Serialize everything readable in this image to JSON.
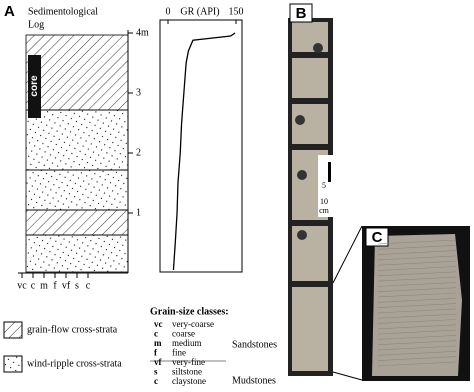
{
  "panels": {
    "a": {
      "label": "A",
      "log_title": [
        "Sedimentological",
        "Log"
      ],
      "core_label": "core",
      "depth_ticks": [
        {
          "value": 1,
          "label": "1"
        },
        {
          "value": 2,
          "label": "2"
        },
        {
          "value": 3,
          "label": "3"
        },
        {
          "value": 4,
          "label": "4m"
        }
      ],
      "grain_size_ticks": [
        "vc",
        "c",
        "m",
        "f",
        "vf",
        "s",
        "c"
      ],
      "gr_log": {
        "x_label": "GR (API)",
        "xlim": [
          0,
          150
        ],
        "xticks": [
          0,
          150
        ],
        "depth": [
          4.0,
          3.95,
          3.88,
          3.7,
          3.5,
          3.0,
          2.5,
          2.0,
          1.5,
          1.0,
          0.5,
          0.05
        ],
        "gr": [
          148,
          138,
          55,
          45,
          40,
          35,
          30,
          27,
          22,
          20,
          16,
          12
        ]
      }
    },
    "b": {
      "label": "B",
      "scale_labels": [
        "5",
        "10",
        "cm"
      ]
    },
    "c": {
      "label": "C"
    }
  },
  "legend": {
    "items": [
      "grain-flow cross-strata",
      "wind-ripple cross-strata"
    ],
    "grain_size": {
      "title": "Grain-size classes:",
      "rows": [
        [
          "vc",
          "very-coarse"
        ],
        [
          "c",
          "coarse"
        ],
        [
          "m",
          "medium"
        ],
        [
          "f",
          "fine"
        ],
        [
          "vf",
          "very-fine"
        ],
        [
          "s",
          "siltstone"
        ],
        [
          "c",
          "claystone"
        ]
      ],
      "groups": [
        "Sandstones",
        "Mudstones"
      ]
    }
  }
}
